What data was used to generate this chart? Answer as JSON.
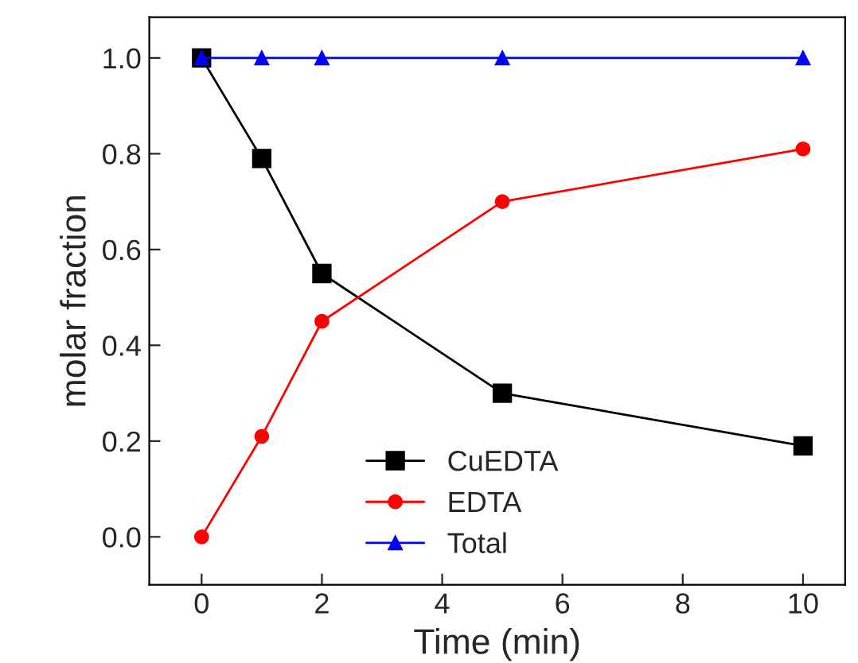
{
  "chart_data": {
    "type": "line",
    "xlabel": "Time (min)",
    "ylabel": "molar fraction",
    "x": [
      0,
      1,
      2,
      5,
      10
    ],
    "series": [
      {
        "name": "CuEDTA",
        "color": "#000000",
        "marker": "square",
        "values": [
          1.0,
          0.79,
          0.55,
          0.3,
          0.19
        ]
      },
      {
        "name": "EDTA",
        "color": "#ff0000",
        "marker": "circle",
        "values": [
          0.0,
          0.21,
          0.45,
          0.7,
          0.81
        ]
      },
      {
        "name": "Total",
        "color": "#0000ff",
        "marker": "triangle",
        "values": [
          1.0,
          1.0,
          1.0,
          1.0,
          1.0
        ]
      }
    ],
    "xlim": [
      -0.87,
      10.7
    ],
    "ylim": [
      -0.1,
      1.085
    ],
    "xticks": [
      0,
      2,
      4,
      6,
      8,
      10
    ],
    "yticks": [
      {
        "value": 0,
        "label": "0.0"
      },
      {
        "value": 0.2,
        "label": "0.2"
      },
      {
        "value": 0.4,
        "label": "0.4"
      },
      {
        "value": 0.6,
        "label": "0.6"
      },
      {
        "value": 0.8,
        "label": "0.8"
      },
      {
        "value": 1.0,
        "label": "1.0"
      }
    ],
    "grid": false,
    "legend": "bottom",
    "line_style": "solid"
  }
}
